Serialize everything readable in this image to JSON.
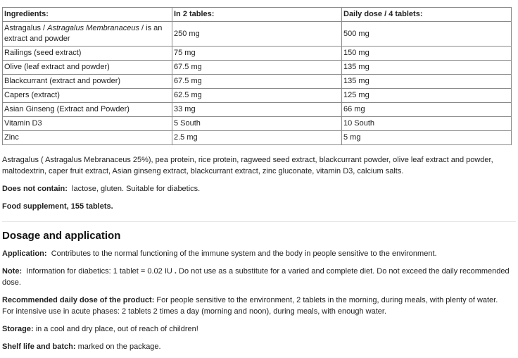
{
  "table": {
    "headers": [
      "Ingredients:",
      "In 2 tables:",
      "Daily dose / 4 tablets:"
    ],
    "first_row": {
      "pre": "Astragalus / ",
      "italic": "Astragalus Membranaceus",
      "post": " / is an extract and powder",
      "dose2": "250 mg",
      "dose4": "500 mg"
    },
    "rows": [
      [
        "Railings (seed extract)",
        "75 mg",
        "150 mg"
      ],
      [
        "Olive (leaf extract and powder)",
        "67.5 mg",
        "135 mg"
      ],
      [
        "Blackcurrant (extract and powder)",
        "67.5 mg",
        "135 mg"
      ],
      [
        "Capers (extract)",
        "62.5 mg",
        "125 mg"
      ],
      [
        "Asian Ginseng (Extract and Powder)",
        "33 mg",
        "66 mg"
      ],
      [
        "Vitamin D3",
        "5 South",
        "10 South"
      ],
      [
        "Zinc",
        "2.5 mg",
        "5 mg"
      ]
    ]
  },
  "composition": "Astragalus ( Astragalus Mebranaceus 25%), pea protein, rice protein, ragweed seed extract, blackcurrant powder, olive leaf extract and powder, maltodextrin, caper fruit extract, Asian ginseng extract, blackcurrant extract, zinc gluconate, vitamin D3, calcium salts.",
  "does_not_contain": {
    "label": "Does not contain:",
    "text": "lactose, gluten. Suitable for diabetics."
  },
  "food_supplement": "Food supplement, 155 tablets.",
  "dosage": {
    "heading": "Dosage and application",
    "application": {
      "label": "Application:",
      "text": "Contributes to the normal functioning of the immune system and the body in people sensitive to the environment."
    },
    "note": {
      "label": "Note:",
      "text_pre": "Information for diabetics: 1 tablet = 0.02 IU ",
      "bold_dot": ".",
      "text_post": " Do not use as a substitute for a varied and complete diet. Do not exceed the daily recommended dose."
    },
    "recommended": {
      "label": "Recommended daily dose of the product:",
      "text": "For people sensitive to the environment, 2 tablets in the morning, during meals, with plenty of water.",
      "text2": "For intensive use in acute phases: 2 tablets 2 times a day (morning and noon), during meals, with enough water."
    },
    "storage": {
      "label": "Storage:",
      "text": "in a cool and dry place, out of reach of children!"
    },
    "shelf": {
      "label": "Shelf life and batch:",
      "text": "marked on the package."
    }
  }
}
